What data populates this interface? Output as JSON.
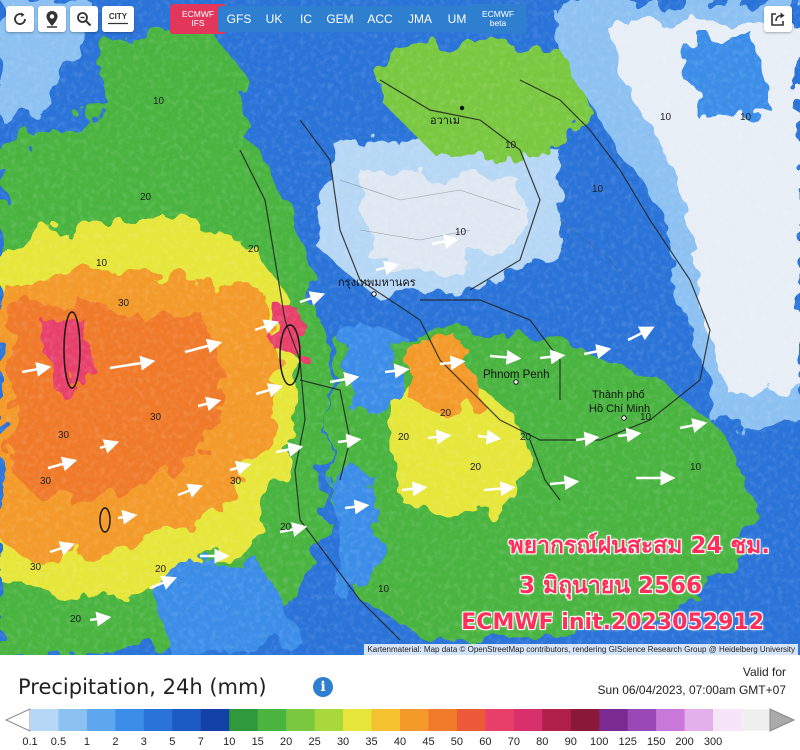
{
  "toolbar": {
    "city_label": "CITY",
    "models": [
      {
        "line1": "ECMWF",
        "line2": "IFS",
        "active": true
      },
      {
        "line1": "GFS"
      },
      {
        "line1": "UK"
      },
      {
        "line1": "IC"
      },
      {
        "line1": "GEM"
      },
      {
        "line1": "ACC"
      },
      {
        "line1": "JMA"
      },
      {
        "line1": "UM"
      },
      {
        "line1": "ECMWF",
        "line2": "beta"
      }
    ]
  },
  "map": {
    "place_labels": [
      "อวาเม",
      "กรุงเทพมหานคร",
      "Phnom Penh",
      "Thành phố",
      "Hồ Chí Minh"
    ],
    "contour_labels": [
      "10",
      "10",
      "10",
      "10",
      "10",
      "20",
      "20",
      "20",
      "30",
      "30",
      "30",
      "30",
      "30",
      "20",
      "20",
      "20",
      "10",
      "20",
      "20",
      "20",
      "30",
      "10",
      "10",
      "10",
      "10"
    ],
    "overlay": {
      "line1": "พยากรณ์ฝนสะสม 24 ชม.",
      "line2": "3 มิถุนายน 2566",
      "line3": "ECMWF init.2023052912"
    },
    "credit": "Kartenmaterial: Map data © OpenStreetMap contributors, rendering GIScience Research Group @ Heidelberg University"
  },
  "legend": {
    "title": "Precipitation, 24h (mm)",
    "valid_label": "Valid for",
    "valid_time": "Sun 06/04/2023, 07:00am GMT+07",
    "ticks": [
      "0.1",
      "0.5",
      "1",
      "2",
      "3",
      "5",
      "7",
      "10",
      "15",
      "20",
      "25",
      "30",
      "35",
      "40",
      "45",
      "50",
      "60",
      "70",
      "80",
      "90",
      "100",
      "125",
      "150",
      "200",
      "300"
    ],
    "colors": [
      "#b6d7f5",
      "#8cc1f2",
      "#5ea7ef",
      "#3b8de8",
      "#2a73d8",
      "#1c5bc4",
      "#1342a6",
      "#2e9a3c",
      "#49b43f",
      "#79c83f",
      "#a8d83a",
      "#e6e63a",
      "#f4c22e",
      "#f39a2a",
      "#f07a2a",
      "#ec5a3a",
      "#e8406a",
      "#d8306a",
      "#b0204a",
      "#8a1838",
      "#7a2a90",
      "#9a48b8",
      "#c878d8",
      "#e4b0ec",
      "#f6e4f8",
      "#f0f0f0"
    ]
  },
  "colors": {
    "accent": "#2f7fd0",
    "active": "#e2365b",
    "overlay_text": "#ff2e5a"
  }
}
